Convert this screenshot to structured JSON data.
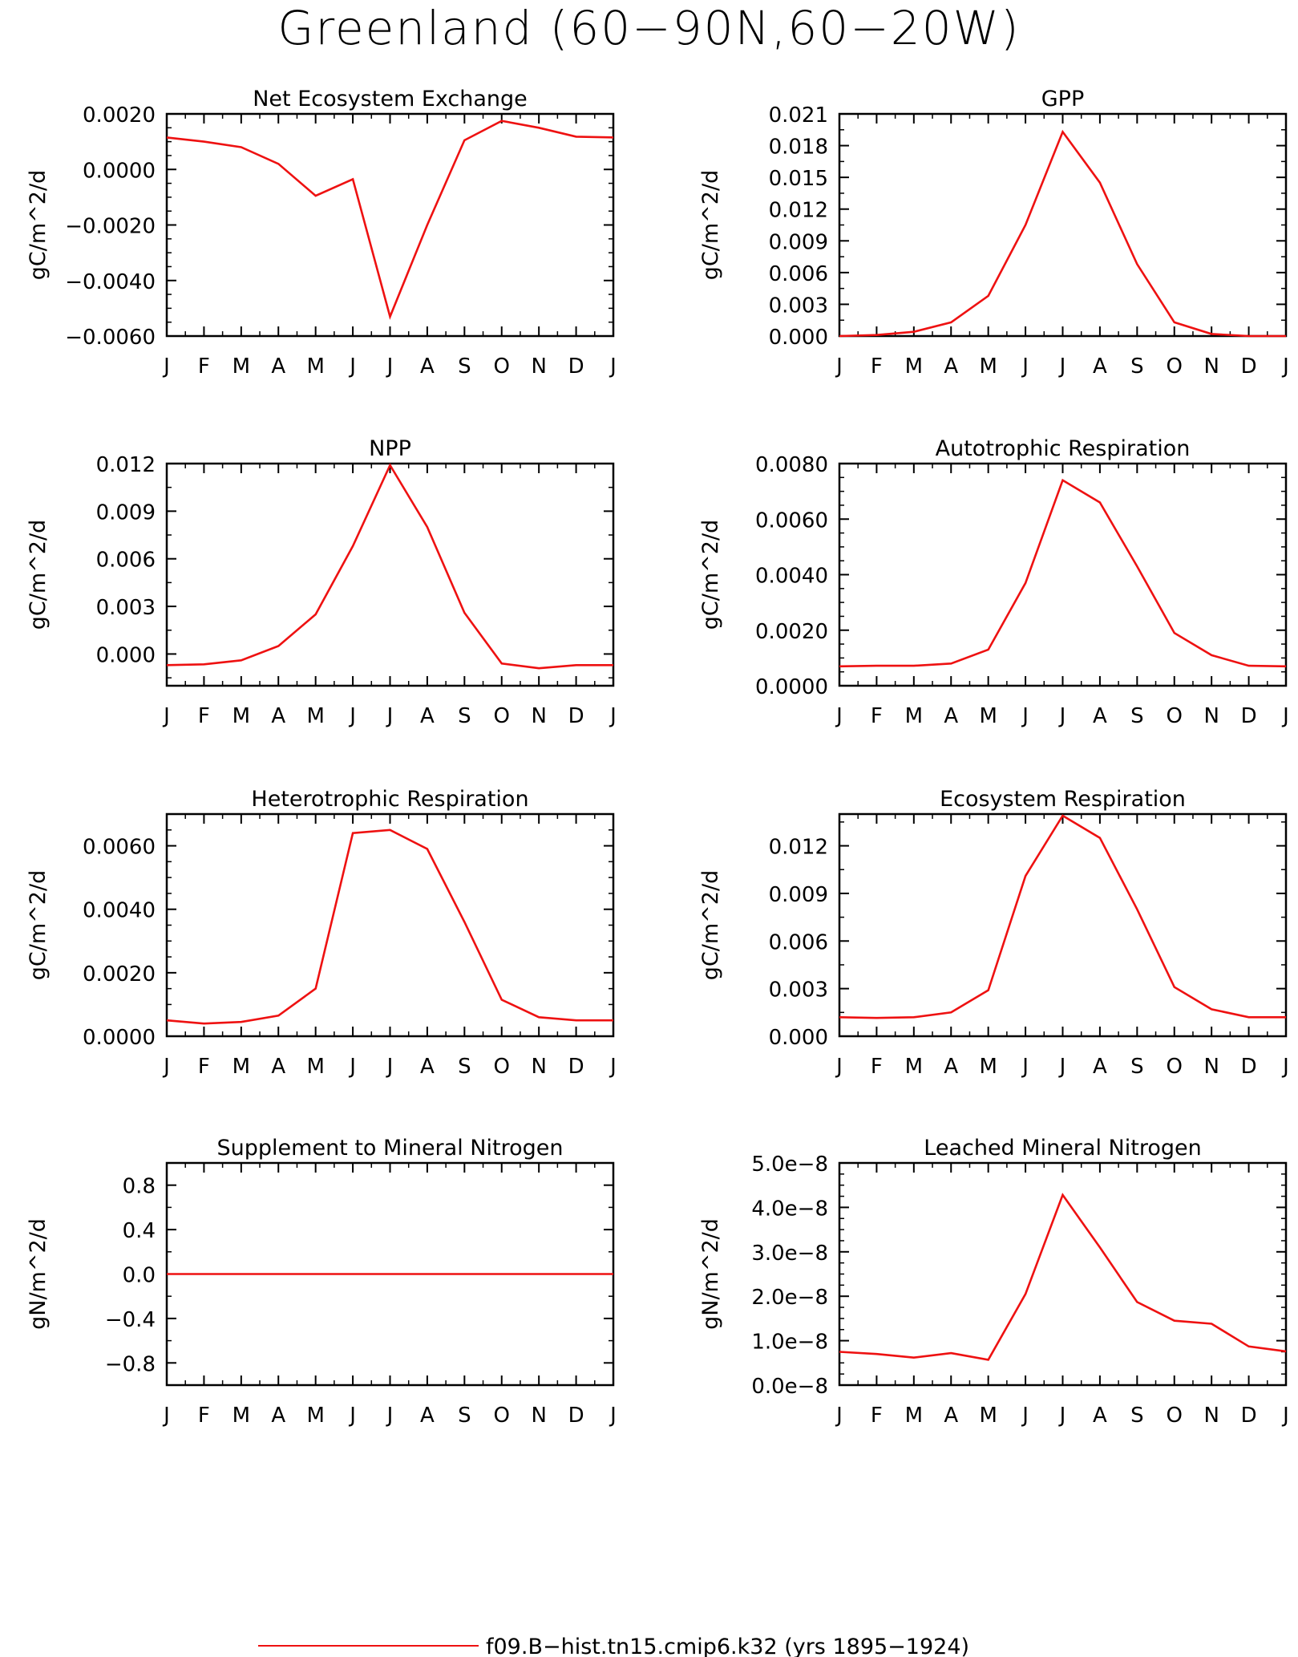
{
  "title": "Greenland (60−90N,60−20W)",
  "colors": {
    "line": "#ee1111",
    "axis": "#000000",
    "background": "#ffffff"
  },
  "legend": {
    "label": "f09.B−hist.tn15.cmip6.k32 (yrs 1895−1924)",
    "color": "#ee1111"
  },
  "chart_data": [
    {
      "type": "line",
      "title": "Net Ecosystem Exchange",
      "ylabel": "gC/m^2/d",
      "categories": [
        "J",
        "F",
        "M",
        "A",
        "M",
        "J",
        "J",
        "A",
        "S",
        "O",
        "N",
        "D",
        "J"
      ],
      "ylim": [
        -0.006,
        0.002
      ],
      "yticks": [
        -0.006,
        -0.004,
        -0.002,
        0.0,
        0.002
      ],
      "ytick_labels": [
        "−0.0060",
        "−0.0040",
        "−0.0020",
        "0.0000",
        "0.0020"
      ],
      "minor_per_major": 4,
      "values": [
        0.00115,
        0.001,
        0.0008,
        0.0002,
        -0.00095,
        -0.00035,
        -0.0053,
        -0.002,
        0.00105,
        0.00175,
        0.0015,
        0.00118,
        0.00115
      ]
    },
    {
      "type": "line",
      "title": "GPP",
      "ylabel": "gC/m^2/d",
      "categories": [
        "J",
        "F",
        "M",
        "A",
        "M",
        "J",
        "J",
        "A",
        "S",
        "O",
        "N",
        "D",
        "J"
      ],
      "ylim": [
        0,
        0.021
      ],
      "yticks": [
        0,
        0.003,
        0.006,
        0.009,
        0.012,
        0.015,
        0.018,
        0.021
      ],
      "ytick_labels": [
        "0.000",
        "0.003",
        "0.006",
        "0.009",
        "0.012",
        "0.015",
        "0.018",
        "0.021"
      ],
      "minor_per_major": 2,
      "values": [
        0.0,
        0.0001,
        0.0004,
        0.0013,
        0.0038,
        0.0105,
        0.0193,
        0.0145,
        0.0068,
        0.0013,
        0.0002,
        0.0,
        0.0
      ]
    },
    {
      "type": "line",
      "title": "NPP",
      "ylabel": "gC/m^2/d",
      "categories": [
        "J",
        "F",
        "M",
        "A",
        "M",
        "J",
        "J",
        "A",
        "S",
        "O",
        "N",
        "D",
        "J"
      ],
      "ylim": [
        -0.002,
        0.012
      ],
      "yticks": [
        0.0,
        0.003,
        0.006,
        0.009,
        0.012
      ],
      "ytick_labels": [
        "0.000",
        "0.003",
        "0.006",
        "0.009",
        "0.012"
      ],
      "minor_per_major": 2,
      "values": [
        -0.0007,
        -0.00065,
        -0.0004,
        0.0005,
        0.0025,
        0.0068,
        0.0119,
        0.008,
        0.0026,
        -0.0006,
        -0.0009,
        -0.0007,
        -0.0007
      ]
    },
    {
      "type": "line",
      "title": "Autotrophic Respiration",
      "ylabel": "gC/m^2/d",
      "categories": [
        "J",
        "F",
        "M",
        "A",
        "M",
        "J",
        "J",
        "A",
        "S",
        "O",
        "N",
        "D",
        "J"
      ],
      "ylim": [
        0,
        0.008
      ],
      "yticks": [
        0.0,
        0.002,
        0.004,
        0.006,
        0.008
      ],
      "ytick_labels": [
        "0.0000",
        "0.0020",
        "0.0040",
        "0.0060",
        "0.0080"
      ],
      "minor_per_major": 4,
      "values": [
        0.0007,
        0.00072,
        0.00072,
        0.0008,
        0.0013,
        0.0037,
        0.0074,
        0.0066,
        0.0043,
        0.0019,
        0.0011,
        0.00072,
        0.0007
      ]
    },
    {
      "type": "line",
      "title": "Heterotrophic Respiration",
      "ylabel": "gC/m^2/d",
      "categories": [
        "J",
        "F",
        "M",
        "A",
        "M",
        "J",
        "J",
        "A",
        "S",
        "O",
        "N",
        "D",
        "J"
      ],
      "ylim": [
        0,
        0.007
      ],
      "yticks": [
        0.0,
        0.002,
        0.004,
        0.006
      ],
      "ytick_labels": [
        "0.0000",
        "0.0020",
        "0.0040",
        "0.0060"
      ],
      "minor_per_major": 4,
      "values": [
        0.0005,
        0.0004,
        0.00045,
        0.00065,
        0.0015,
        0.0064,
        0.0065,
        0.0059,
        0.0036,
        0.00115,
        0.0006,
        0.0005,
        0.0005
      ]
    },
    {
      "type": "line",
      "title": "Ecosystem Respiration",
      "ylabel": "gC/m^2/d",
      "categories": [
        "J",
        "F",
        "M",
        "A",
        "M",
        "J",
        "J",
        "A",
        "S",
        "O",
        "N",
        "D",
        "J"
      ],
      "ylim": [
        0,
        0.014
      ],
      "yticks": [
        0.0,
        0.003,
        0.006,
        0.009,
        0.012
      ],
      "ytick_labels": [
        "0.000",
        "0.003",
        "0.006",
        "0.009",
        "0.012"
      ],
      "minor_per_major": 2,
      "values": [
        0.0012,
        0.00115,
        0.0012,
        0.0015,
        0.0029,
        0.0101,
        0.0139,
        0.0125,
        0.008,
        0.0031,
        0.0017,
        0.0012,
        0.0012
      ]
    },
    {
      "type": "line",
      "title": "Supplement to Mineral Nitrogen",
      "ylabel": "gN/m^2/d",
      "categories": [
        "J",
        "F",
        "M",
        "A",
        "M",
        "J",
        "J",
        "A",
        "S",
        "O",
        "N",
        "D",
        "J"
      ],
      "ylim": [
        -1.0,
        1.0
      ],
      "yticks": [
        -0.8,
        -0.4,
        0.0,
        0.4,
        0.8
      ],
      "ytick_labels": [
        "−0.8",
        "−0.4",
        "0.0",
        "0.4",
        "0.8"
      ],
      "minor_per_major": 2,
      "values": [
        0,
        0,
        0,
        0,
        0,
        0,
        0,
        0,
        0,
        0,
        0,
        0,
        0
      ]
    },
    {
      "type": "line",
      "title": "Leached Mineral Nitrogen",
      "ylabel": "gN/m^2/d",
      "categories": [
        "J",
        "F",
        "M",
        "A",
        "M",
        "J",
        "J",
        "A",
        "S",
        "O",
        "N",
        "D",
        "J"
      ],
      "ylim": [
        0,
        5e-08
      ],
      "yticks": [
        0,
        1e-08,
        2e-08,
        3e-08,
        4e-08,
        5e-08
      ],
      "ytick_labels": [
        "0.0e−8",
        "1.0e−8",
        "2.0e−8",
        "3.0e−8",
        "4.0e−8",
        "5.0e−8"
      ],
      "minor_per_major": 4,
      "values": [
        7.5e-09,
        7e-09,
        6.2e-09,
        7.2e-09,
        5.7e-09,
        2.05e-08,
        4.28e-08,
        3.1e-08,
        1.87e-08,
        1.45e-08,
        1.38e-08,
        8.7e-09,
        7.6e-09
      ]
    }
  ]
}
